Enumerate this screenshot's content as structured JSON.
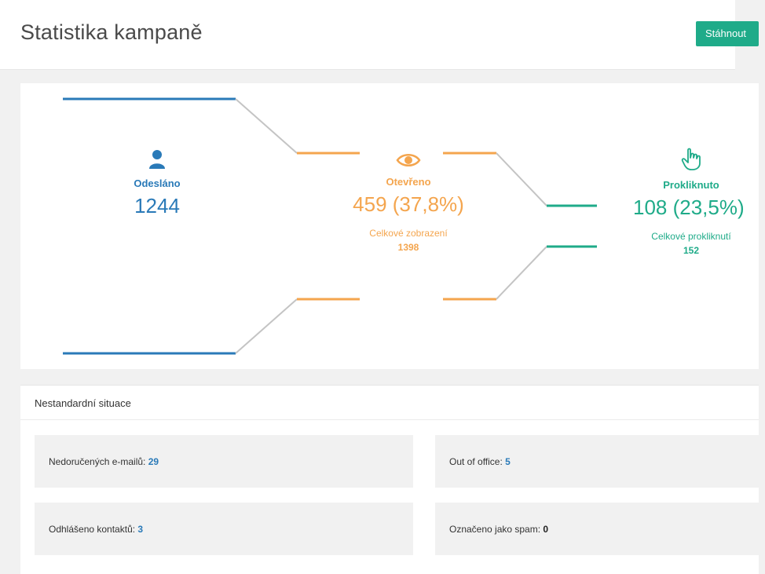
{
  "header": {
    "title": "Statistika kampaně",
    "download_label": "Stáhnout"
  },
  "funnel": {
    "sent": {
      "label": "Odesláno",
      "value": "1244",
      "color": "#2a7ab8",
      "icon": "user-icon"
    },
    "opened": {
      "label": "Otevřeno",
      "value": "459 (37,8%)",
      "sub_label": "Celkové zobrazení",
      "sub_value": "1398",
      "color": "#f4a54e",
      "icon": "eye-icon"
    },
    "clicked": {
      "label": "Prokliknuto",
      "value": "108 (23,5%)",
      "sub_label": "Celkové prokliknutí",
      "sub_value": "152",
      "color": "#1fab89",
      "icon": "pointer-hand-icon"
    },
    "connector_color": "#c4c4c4"
  },
  "issues": {
    "title": "Nestandardní situace",
    "items": [
      {
        "label": "Nedoručených e-mailů:",
        "value": "29"
      },
      {
        "label": "Out of office:",
        "value": "5"
      },
      {
        "label": "Odhlášeno kontaktů:",
        "value": "3"
      },
      {
        "label": "Označeno jako spam:",
        "value": "0"
      }
    ]
  }
}
